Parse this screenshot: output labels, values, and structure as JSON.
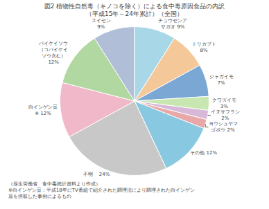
{
  "chart_data": {
    "type": "pie",
    "title": "図2 植物性自然毒（キノコを除く）による食中毒原因食品の内訳",
    "subtitle": "（平成15年～24年累計）（全国）",
    "values": [
      9,
      8,
      7,
      3,
      2,
      2,
      12,
      24,
      12,
      12,
      9
    ],
    "value_labels": [
      "チョウセンア\nサガオ 9%",
      "トリカブト\n8%",
      "ジャガイモ\n7%",
      "クワズイモ\n3%",
      "イヌサフラン\n2%",
      "ヨウシュヤマ\nゴボウ 2%",
      "その他 12%",
      "不明　 24%",
      "白インゲン豆\n※ 12%",
      "バイケイソウ\n（コバイケイ\nソウ含む）\n12%",
      "スイセン\n9%"
    ],
    "colors": [
      "#A8D8E8",
      "#F5C89A",
      "#7BA7D4",
      "#C8E6B0",
      "#D8B8D8",
      "#E8A8A8",
      "#88C8E0",
      "#C8C8C8",
      "#F0B8C8",
      "#B0D8A0",
      "#B0BED8"
    ],
    "data_labels": true,
    "annotations": [
      "（厚生労働省　食中毒統計資料より作成）",
      "※白インゲン豆：平成18年にTV番組で紹介された調理法により調理された白インゲン",
      "豆を摂取した事例によるもの"
    ]
  }
}
